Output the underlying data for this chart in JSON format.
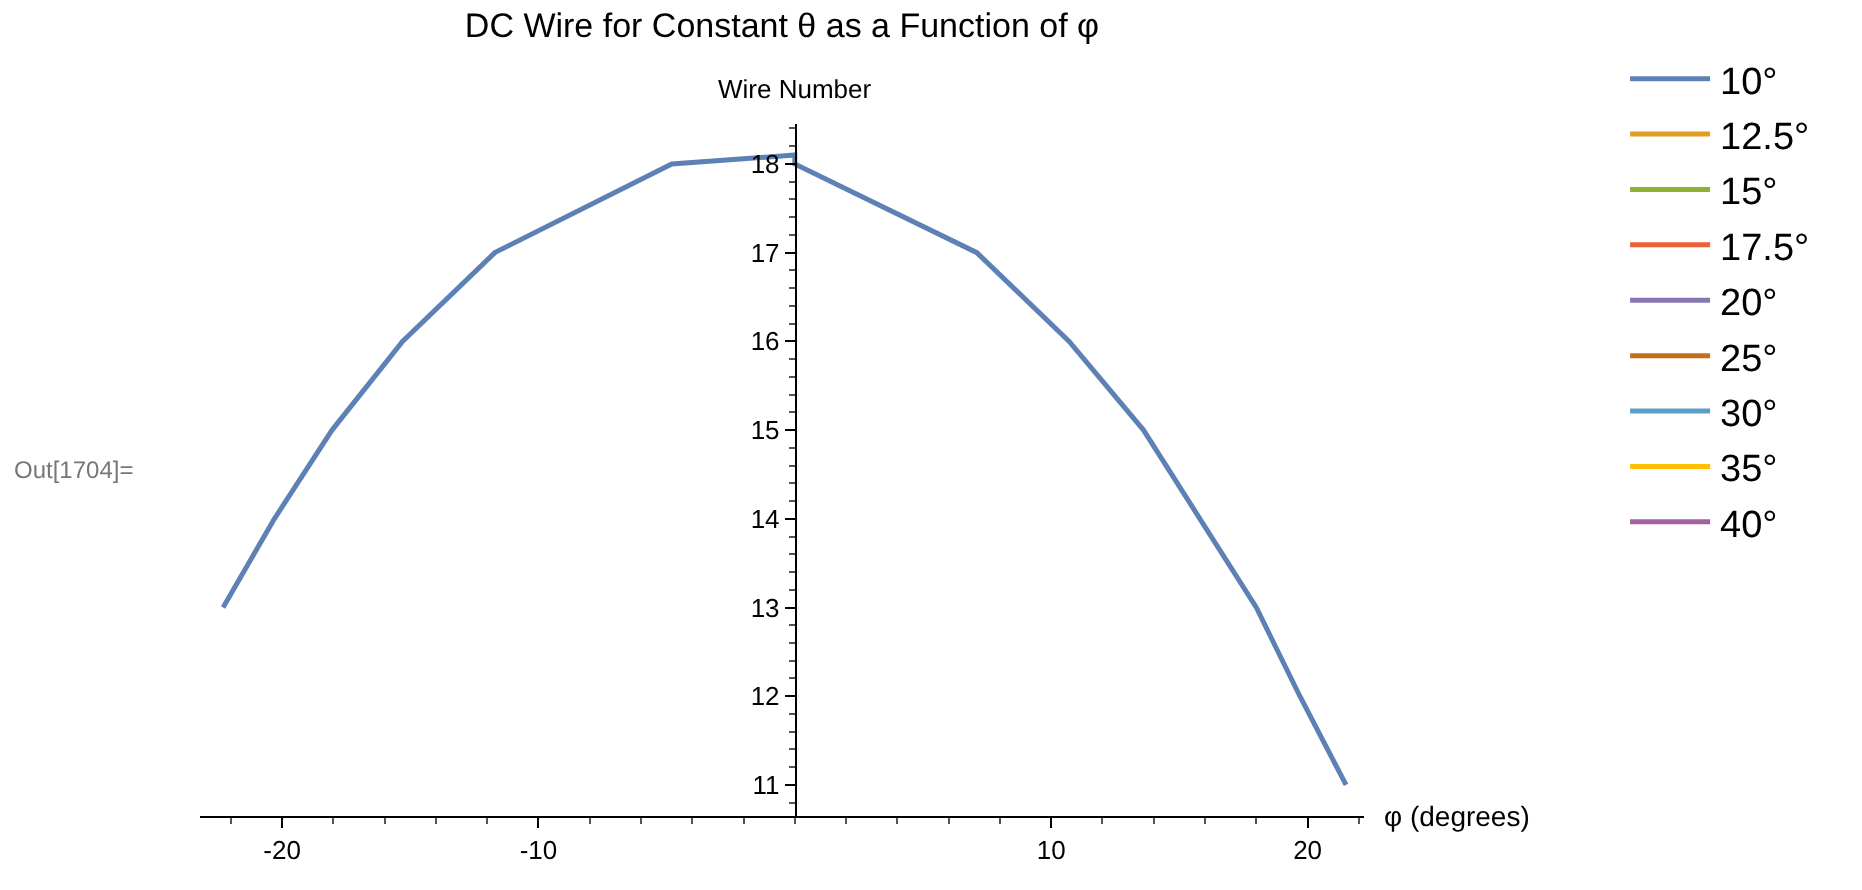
{
  "chart_data": {
    "type": "line",
    "title": "DC Wire for Constant θ as a Function of φ",
    "ylabel": "Wire Number",
    "xlabel": "φ (degrees)",
    "x": [
      -22.3,
      -20.3,
      -18.05,
      -15.3,
      -11.7,
      -4.8,
      0,
      0,
      7.1,
      10.7,
      13.6,
      15.8,
      18.0,
      19.7,
      21.5
    ],
    "series": [
      {
        "name": "10°",
        "color": "#5e81b5",
        "values": [
          13,
          14,
          15,
          16,
          17,
          18,
          18.1,
          18,
          17,
          16,
          15,
          14,
          13,
          12,
          11
        ]
      },
      {
        "name": "12.5°",
        "color": "#e19c24",
        "values": [
          null,
          null,
          null,
          null,
          null,
          null,
          null,
          null,
          null,
          null,
          null,
          null,
          null,
          null,
          null
        ]
      },
      {
        "name": "15°",
        "color": "#8fb032",
        "values": [
          null,
          null,
          null,
          null,
          null,
          null,
          null,
          null,
          null,
          null,
          null,
          null,
          null,
          null,
          null
        ]
      },
      {
        "name": "17.5°",
        "color": "#eb6235",
        "values": [
          null,
          null,
          null,
          null,
          null,
          null,
          null,
          null,
          null,
          null,
          null,
          null,
          null,
          null,
          null
        ]
      },
      {
        "name": "20°",
        "color": "#8778b3",
        "values": [
          null,
          null,
          null,
          null,
          null,
          null,
          null,
          null,
          null,
          null,
          null,
          null,
          null,
          null,
          null
        ]
      },
      {
        "name": "25°",
        "color": "#c56e1a",
        "values": [
          null,
          null,
          null,
          null,
          null,
          null,
          null,
          null,
          null,
          null,
          null,
          null,
          null,
          null,
          null
        ]
      },
      {
        "name": "30°",
        "color": "#5d9ec7",
        "values": [
          null,
          null,
          null,
          null,
          null,
          null,
          null,
          null,
          null,
          null,
          null,
          null,
          null,
          null,
          null
        ]
      },
      {
        "name": "35°",
        "color": "#ffbf00",
        "values": [
          null,
          null,
          null,
          null,
          null,
          null,
          null,
          null,
          null,
          null,
          null,
          null,
          null,
          null,
          null
        ]
      },
      {
        "name": "40°",
        "color": "#a5609d",
        "values": [
          null,
          null,
          null,
          null,
          null,
          null,
          null,
          null,
          null,
          null,
          null,
          null,
          null,
          null,
          null
        ]
      }
    ],
    "xlim": [
      -23.2,
      22.2
    ],
    "ylim": [
      10.65,
      18.45
    ],
    "xticks": [
      -20,
      -10,
      10,
      20
    ],
    "yticks": [
      11,
      12,
      13,
      14,
      15,
      16,
      17,
      18
    ],
    "annotations": [
      "Out[1704]="
    ],
    "legend": "right",
    "marker": "none",
    "line_style": "solid"
  }
}
